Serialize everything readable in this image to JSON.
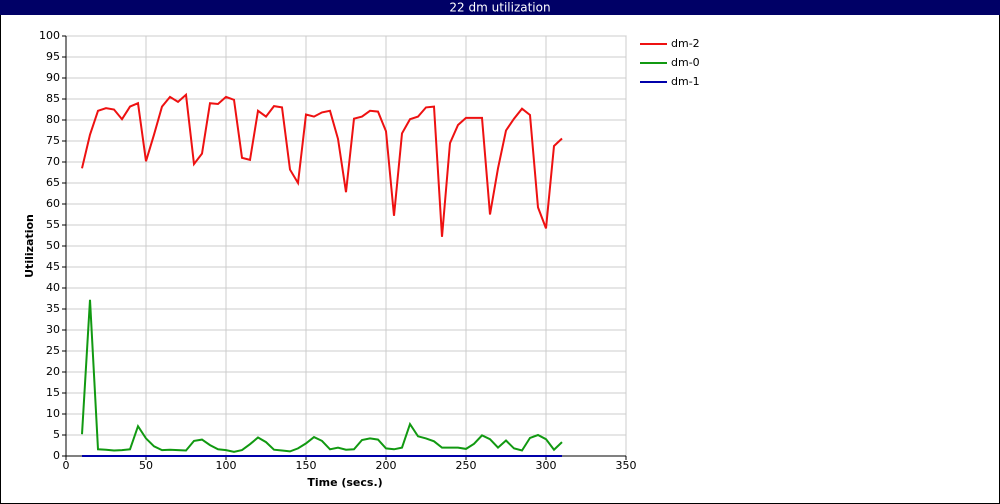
{
  "chart_data": {
    "type": "line",
    "title": "22 dm utilization",
    "x_label": "Time (secs.)",
    "y_label": "Utilization",
    "x": [
      10,
      15,
      20,
      25,
      30,
      35,
      40,
      45,
      50,
      55,
      60,
      65,
      70,
      75,
      80,
      85,
      90,
      95,
      100,
      105,
      110,
      115,
      120,
      125,
      130,
      135,
      140,
      145,
      150,
      155,
      160,
      165,
      170,
      175,
      180,
      185,
      190,
      195,
      200,
      205,
      210,
      215,
      220,
      225,
      230,
      235,
      240,
      245,
      250,
      255,
      260,
      265,
      270,
      275,
      280,
      285,
      290,
      295,
      300,
      305,
      310
    ],
    "series": [
      {
        "name": "dm-2",
        "color": "#ee1111",
        "values": [
          68.5,
          76.5,
          82.2,
          82.8,
          82.5,
          80.2,
          83.2,
          84.0,
          70.2,
          76.5,
          83.2,
          85.5,
          84.3,
          86.0,
          69.5,
          72.0,
          84.0,
          83.8,
          85.5,
          84.8,
          71.0,
          70.5,
          82.2,
          80.8,
          83.3,
          83.0,
          68.2,
          65.0,
          81.3,
          80.8,
          81.8,
          82.2,
          75.5,
          62.8,
          80.3,
          80.8,
          82.2,
          82.0,
          77.3,
          57.2,
          76.8,
          80.2,
          80.8,
          83.0,
          83.2,
          52.2,
          74.5,
          78.8,
          80.5,
          80.5,
          80.5,
          57.5,
          68.5,
          77.5,
          80.3,
          82.7,
          81.2,
          59.2,
          54.2,
          73.8,
          75.6
        ]
      },
      {
        "name": "dm-0",
        "color": "#119911",
        "values": [
          5.2,
          37.2,
          1.6,
          1.5,
          1.3,
          1.4,
          1.6,
          7.1,
          4.2,
          2.3,
          1.4,
          1.5,
          1.4,
          1.3,
          3.6,
          3.9,
          2.6,
          1.6,
          1.4,
          1.0,
          1.4,
          2.8,
          4.4,
          3.3,
          1.5,
          1.3,
          1.1,
          1.8,
          3.0,
          4.5,
          3.6,
          1.6,
          2.0,
          1.5,
          1.6,
          3.8,
          4.2,
          3.9,
          1.8,
          1.6,
          2.0,
          7.6,
          4.7,
          4.2,
          3.5,
          2.0,
          2.0,
          2.0,
          1.7,
          2.9,
          4.9,
          4.0,
          2.0,
          3.7,
          1.8,
          1.3,
          4.3,
          5.0,
          4.0,
          1.5,
          3.3
        ]
      },
      {
        "name": "dm-1",
        "color": "#0000aa",
        "values": [
          0,
          0,
          0,
          0,
          0,
          0,
          0,
          0,
          0,
          0,
          0,
          0,
          0,
          0,
          0,
          0,
          0,
          0,
          0,
          0,
          0,
          0,
          0,
          0,
          0,
          0,
          0,
          0,
          0,
          0,
          0,
          0,
          0,
          0,
          0,
          0,
          0,
          0,
          0,
          0,
          0,
          0,
          0,
          0,
          0,
          0,
          0,
          0,
          0,
          0,
          0,
          0,
          0,
          0,
          0,
          0,
          0,
          0,
          0,
          0,
          0
        ]
      }
    ],
    "xlim": [
      0,
      350
    ],
    "xticks": [
      0,
      50,
      100,
      150,
      200,
      250,
      300,
      350
    ],
    "ylim": [
      0,
      100
    ],
    "yticks": [
      0,
      5,
      10,
      15,
      20,
      25,
      30,
      35,
      40,
      45,
      50,
      55,
      60,
      65,
      70,
      75,
      80,
      85,
      90,
      95,
      100
    ],
    "grid": true,
    "legend": "right"
  }
}
